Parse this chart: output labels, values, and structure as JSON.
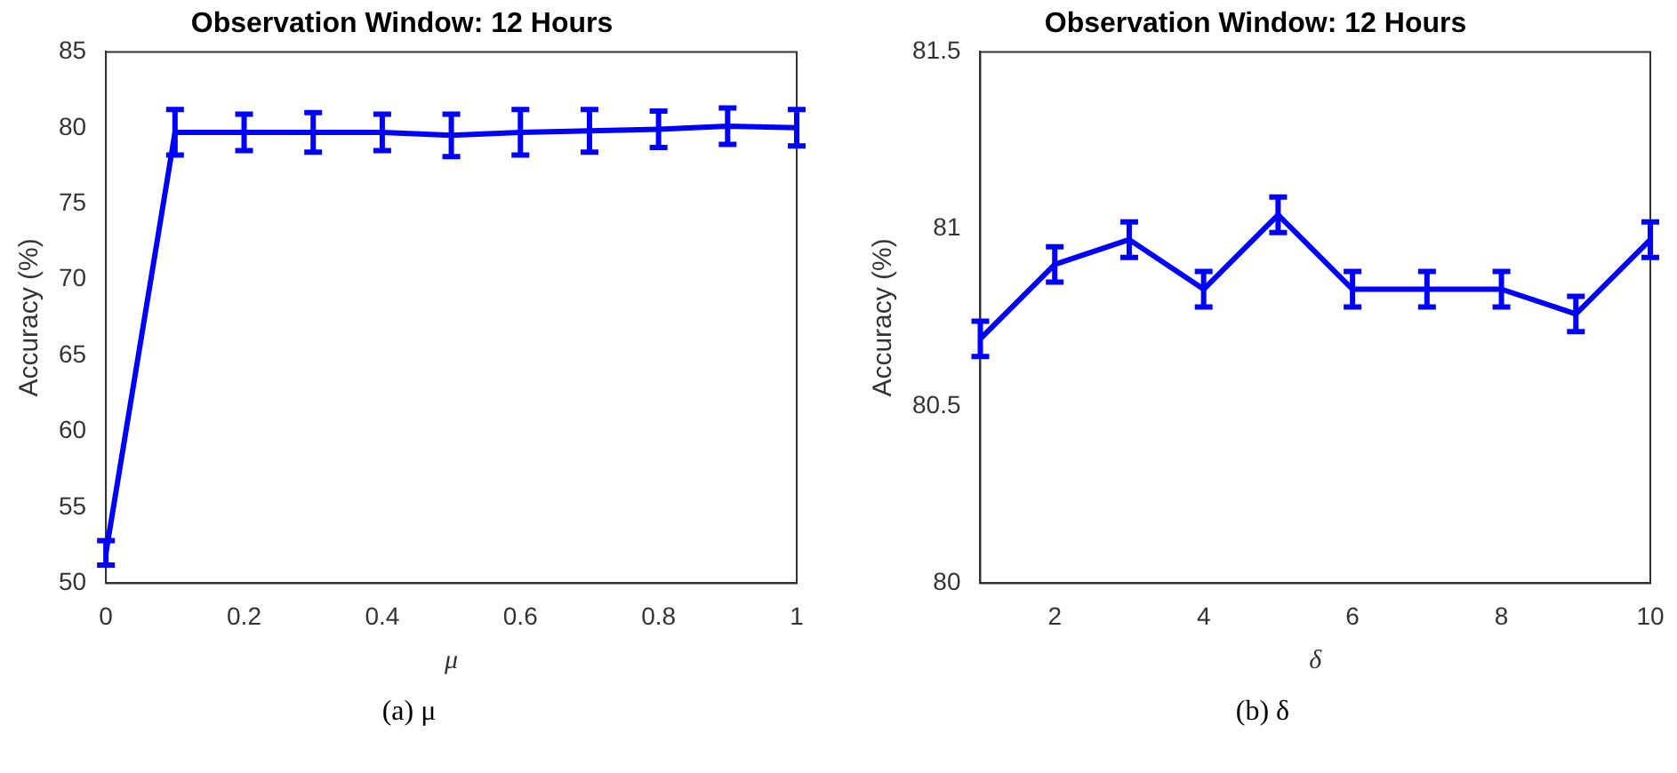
{
  "chart_data": [
    {
      "type": "line",
      "title": "Observation Window: 12 Hours",
      "xlabel": "μ",
      "ylabel": "Accuracy (%)",
      "x": [
        0,
        0.1,
        0.2,
        0.3,
        0.4,
        0.5,
        0.6,
        0.7,
        0.8,
        0.9,
        1
      ],
      "series": [
        {
          "color": "#0000ff",
          "values": [
            52.0,
            79.7,
            79.7,
            79.7,
            79.7,
            79.5,
            79.7,
            79.8,
            79.9,
            80.1,
            80.0
          ],
          "errors": [
            0.8,
            1.5,
            1.2,
            1.3,
            1.2,
            1.4,
            1.5,
            1.4,
            1.2,
            1.2,
            1.2
          ]
        }
      ],
      "xlim": [
        0,
        1
      ],
      "xticks": [
        0,
        0.2,
        0.4,
        0.6,
        0.8,
        1
      ],
      "ylim": [
        50,
        85
      ],
      "yticks": [
        50,
        55,
        60,
        65,
        70,
        75,
        80,
        85
      ],
      "grid": false,
      "legend": false,
      "marker": "none",
      "line_style": "solid",
      "annotations": [
        "(a) μ"
      ]
    },
    {
      "type": "line",
      "title": "Observation Window: 12 Hours",
      "xlabel": "δ",
      "ylabel": "Accuracy (%)",
      "x": [
        1,
        2,
        3,
        4,
        5,
        6,
        7,
        8,
        9,
        10
      ],
      "series": [
        {
          "color": "#0000ff",
          "values": [
            80.69,
            80.9,
            80.97,
            80.83,
            81.04,
            80.83,
            80.83,
            80.83,
            80.76,
            80.97
          ],
          "errors": [
            0.05,
            0.05,
            0.05,
            0.05,
            0.05,
            0.05,
            0.05,
            0.05,
            0.05,
            0.05
          ]
        }
      ],
      "xlim": [
        1,
        10
      ],
      "xticks": [
        2,
        4,
        6,
        8,
        10
      ],
      "ylim": [
        80,
        81.5
      ],
      "yticks": [
        80,
        80.5,
        81,
        81.5
      ],
      "grid": false,
      "legend": false,
      "marker": "none",
      "line_style": "solid",
      "annotations": [
        "(b) δ"
      ]
    }
  ]
}
